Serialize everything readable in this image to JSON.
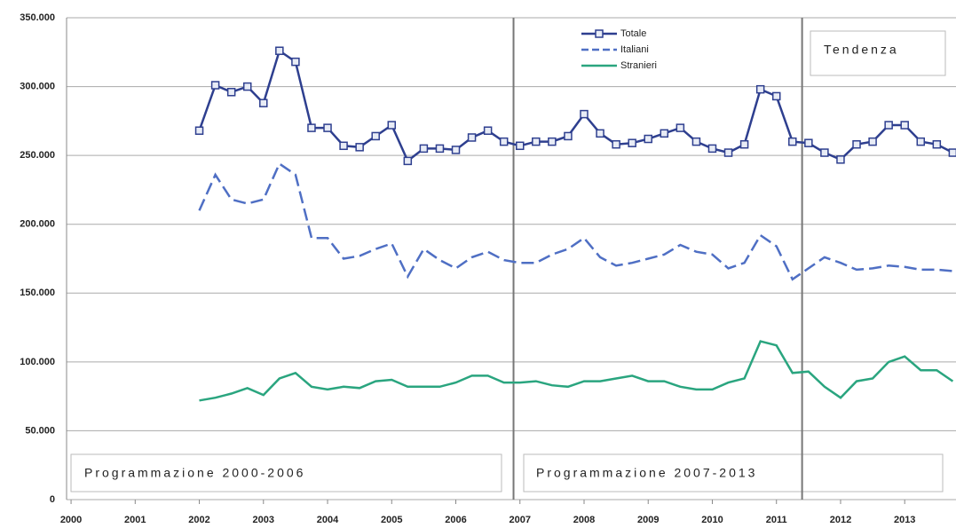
{
  "chart_data": {
    "type": "line",
    "x": [
      2002,
      2002.25,
      2002.5,
      2002.75,
      2003,
      2003.25,
      2003.5,
      2003.75,
      2004,
      2004.25,
      2004.5,
      2004.75,
      2005,
      2005.25,
      2005.5,
      2005.75,
      2006,
      2006.25,
      2006.5,
      2006.75,
      2007,
      2007.25,
      2007.5,
      2007.75,
      2008,
      2008.25,
      2008.5,
      2008.75,
      2009,
      2009.25,
      2009.5,
      2009.75,
      2010,
      2010.25,
      2010.5,
      2010.75,
      2011,
      2011.25,
      2011.5,
      2011.75,
      2012,
      2012.25,
      2012.5,
      2012.75,
      2013,
      2013.25,
      2013.5,
      2013.75
    ],
    "series": [
      {
        "name": "Totale",
        "color": "#2e3f8f",
        "dash": false,
        "markers": true,
        "values": [
          268000,
          301000,
          296000,
          300000,
          288000,
          326000,
          318000,
          270000,
          270000,
          257000,
          256000,
          264000,
          272000,
          246000,
          255000,
          255000,
          254000,
          263000,
          268000,
          260000,
          257000,
          260000,
          260000,
          264000,
          280000,
          266000,
          258000,
          259000,
          262000,
          266000,
          270000,
          260000,
          255000,
          252000,
          258000,
          298000,
          293000,
          260000,
          259000,
          252000,
          247000,
          258000,
          260000,
          272000,
          272000,
          260000,
          258000,
          252000
        ]
      },
      {
        "name": "Italiani",
        "color": "#4f6fc4",
        "dash": true,
        "markers": false,
        "values": [
          210000,
          236000,
          218000,
          215000,
          218000,
          244000,
          236000,
          190000,
          190000,
          175000,
          177000,
          182000,
          186000,
          162000,
          182000,
          174000,
          168000,
          176000,
          180000,
          174000,
          172000,
          172000,
          178000,
          182000,
          190000,
          176000,
          170000,
          172000,
          175000,
          178000,
          185000,
          180000,
          178000,
          168000,
          172000,
          192000,
          184000,
          160000,
          168000,
          176000,
          172000,
          167000,
          168000,
          170000,
          169000,
          167000,
          167000,
          166000
        ]
      },
      {
        "name": "Stranieri",
        "color": "#2aa57f",
        "dash": false,
        "markers": false,
        "values": [
          72000,
          74000,
          77000,
          81000,
          76000,
          88000,
          92000,
          82000,
          80000,
          82000,
          81000,
          86000,
          87000,
          82000,
          82000,
          82000,
          85000,
          90000,
          90000,
          85000,
          85000,
          86000,
          83000,
          82000,
          86000,
          86000,
          88000,
          90000,
          86000,
          86000,
          82000,
          80000,
          80000,
          85000,
          88000,
          115000,
          112000,
          92000,
          93000,
          82000,
          74000,
          86000,
          88000,
          100000,
          104000,
          94000,
          94000,
          86000
        ]
      }
    ],
    "xlim": [
      1999.93,
      2013.8
    ],
    "xticks": [
      2000,
      2001,
      2002,
      2003,
      2004,
      2005,
      2006,
      2007,
      2008,
      2009,
      2010,
      2011,
      2012,
      2013
    ],
    "ylim": [
      0,
      350000
    ],
    "yticks": [
      0,
      {
        "value": 50000,
        "label": "50.000"
      },
      {
        "value": 100000,
        "label": "100.000"
      },
      {
        "value": 150000,
        "label": "150.000"
      },
      {
        "value": 200000,
        "label": "200.000"
      },
      {
        "value": 250000,
        "label": "250.000"
      },
      {
        "value": 300000,
        "label": "300.000"
      },
      {
        "value": 350000,
        "label": "350.000"
      }
    ],
    "grid": true,
    "vlines": [
      2006.9,
      2011.4
    ],
    "annotations": [
      "Programmazione 2000-2006",
      "Programmazione 2007-2013",
      "Tendenza"
    ]
  }
}
